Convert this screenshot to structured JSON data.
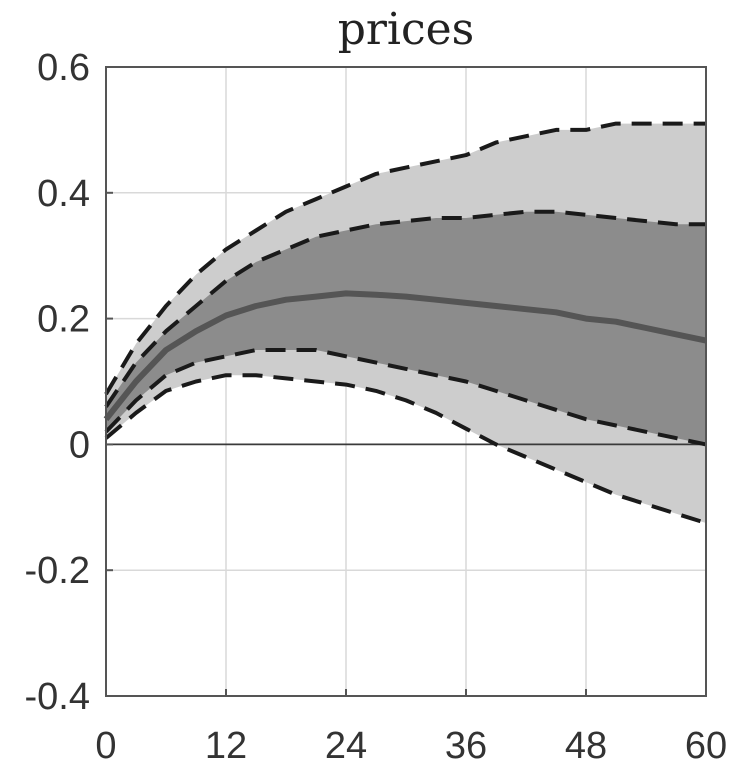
{
  "chart_data": {
    "type": "area",
    "title": "prices",
    "xlabel": "",
    "ylabel": "",
    "xlim": [
      0,
      60
    ],
    "ylim": [
      -0.4,
      0.6
    ],
    "x_ticks": [
      0,
      12,
      24,
      36,
      48,
      60
    ],
    "x_tick_labels": [
      "0",
      "12",
      "24",
      "36",
      "48",
      "60"
    ],
    "y_ticks": [
      -0.4,
      -0.2,
      0,
      0.2,
      0.4,
      0.6
    ],
    "y_tick_labels": [
      "-0.4",
      "-0.2",
      "0",
      "0.2",
      "0.4",
      "0.6"
    ],
    "grid": true,
    "zero_line": true,
    "x": [
      0,
      3,
      6,
      9,
      12,
      15,
      18,
      21,
      24,
      27,
      30,
      33,
      36,
      39,
      42,
      45,
      48,
      51,
      54,
      57,
      60
    ],
    "outer_upper": [
      0.08,
      0.16,
      0.22,
      0.27,
      0.31,
      0.34,
      0.37,
      0.39,
      0.41,
      0.43,
      0.44,
      0.45,
      0.46,
      0.48,
      0.49,
      0.5,
      0.5,
      0.51,
      0.51,
      0.51,
      0.51
    ],
    "inner_upper": [
      0.06,
      0.13,
      0.18,
      0.22,
      0.26,
      0.29,
      0.31,
      0.33,
      0.34,
      0.35,
      0.355,
      0.36,
      0.36,
      0.365,
      0.37,
      0.37,
      0.365,
      0.36,
      0.355,
      0.35,
      0.35
    ],
    "median": [
      0.04,
      0.1,
      0.15,
      0.18,
      0.205,
      0.22,
      0.23,
      0.235,
      0.24,
      0.238,
      0.235,
      0.23,
      0.225,
      0.22,
      0.215,
      0.21,
      0.2,
      0.195,
      0.185,
      0.175,
      0.165
    ],
    "inner_lower": [
      0.02,
      0.07,
      0.11,
      0.13,
      0.14,
      0.15,
      0.15,
      0.15,
      0.14,
      0.13,
      0.12,
      0.11,
      0.1,
      0.085,
      0.07,
      0.055,
      0.04,
      0.03,
      0.02,
      0.01,
      0.0
    ],
    "outer_lower": [
      0.01,
      0.05,
      0.085,
      0.1,
      0.11,
      0.11,
      0.105,
      0.1,
      0.095,
      0.085,
      0.07,
      0.05,
      0.025,
      0.0,
      -0.02,
      -0.04,
      -0.06,
      -0.08,
      -0.095,
      -0.11,
      -0.125
    ],
    "colors": {
      "outer_band": "#cdcdcd",
      "inner_band": "#8c8c8c",
      "median_line": "#555555",
      "dashed_line": "#1a1a1a",
      "grid": "#d9d9d9",
      "axis": "#555555"
    }
  }
}
